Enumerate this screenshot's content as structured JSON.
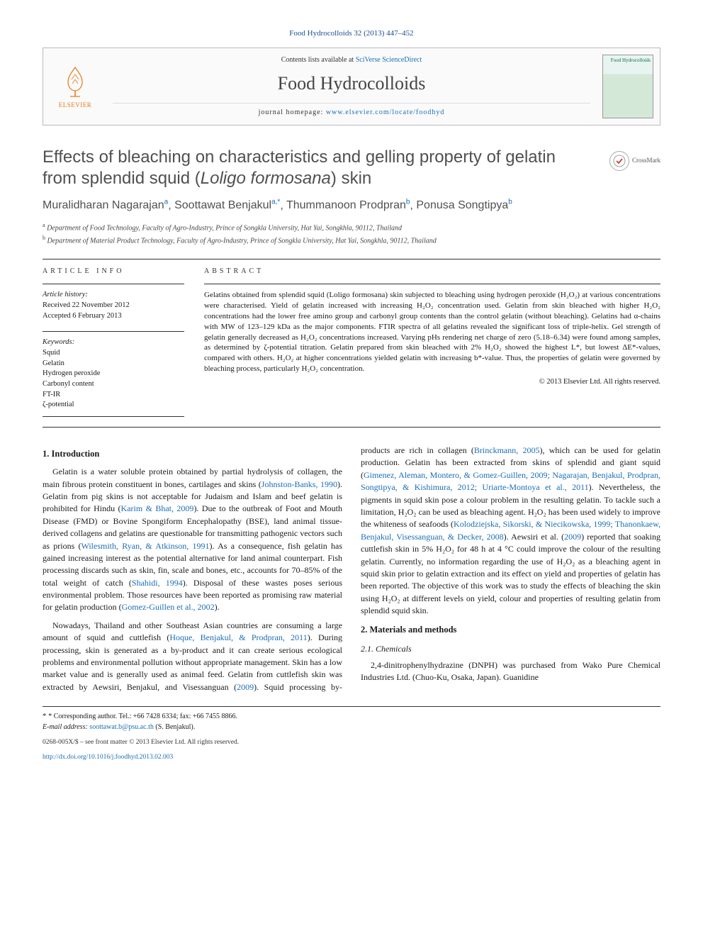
{
  "citation": "Food Hydrocolloids 32 (2013) 447–452",
  "masthead": {
    "contents_prefix": "Contents lists available at ",
    "contents_link": "SciVerse ScienceDirect",
    "journal": "Food Hydrocolloids",
    "homepage_prefix": "journal homepage: ",
    "homepage_url": "www.elsevier.com/locate/foodhyd",
    "publisher": "ELSEVIER",
    "cover_label": "Food Hydrocolloids"
  },
  "crossmark": "CrossMark",
  "title_a": "Effects of bleaching on characteristics and gelling property of gelatin from splendid squid (",
  "title_species": "Loligo formosana",
  "title_b": ") skin",
  "authors_html": "Muralidharan Nagarajan|a|, Soottawat Benjakul|a,*|, Thummanoon Prodpran|b|, Ponusa Songtipya|b|",
  "authors": [
    {
      "name": "Muralidharan Nagarajan",
      "sup": "a"
    },
    {
      "name": "Soottawat Benjakul",
      "sup": "a,*"
    },
    {
      "name": "Thummanoon Prodpran",
      "sup": "b"
    },
    {
      "name": "Ponusa Songtipya",
      "sup": "b"
    }
  ],
  "affiliations": [
    {
      "sup": "a",
      "text": "Department of Food Technology, Faculty of Agro-Industry, Prince of Songkla University, Hat Yai, Songkhla, 90112, Thailand"
    },
    {
      "sup": "b",
      "text": "Department of Material Product Technology, Faculty of Agro-Industry, Prince of Songkla University, Hat Yai, Songkhla, 90112, Thailand"
    }
  ],
  "info_heading": "ARTICLE INFO",
  "abstract_heading": "ABSTRACT",
  "history": {
    "label": "Article history:",
    "received": "Received 22 November 2012",
    "accepted": "Accepted 6 February 2013"
  },
  "keywords_label": "Keywords:",
  "keywords": [
    "Squid",
    "Gelatin",
    "Hydrogen peroxide",
    "Carbonyl content",
    "FT-IR",
    "ζ-potential"
  ],
  "abstract": "Gelatins obtained from splendid squid (Loligo formosana) skin subjected to bleaching using hydrogen peroxide (H₂O₂) at various concentrations were characterised. Yield of gelatin increased with increasing H₂O₂ concentration used. Gelatin from skin bleached with higher H₂O₂ concentrations had the lower free amino group and carbonyl group contents than the control gelatin (without bleaching). Gelatins had α-chains with MW of 123–129 kDa as the major components. FTIR spectra of all gelatins revealed the significant loss of triple-helix. Gel strength of gelatin generally decreased as H₂O₂ concentrations increased. Varying pHs rendering net charge of zero (5.18–6.34) were found among samples, as determined by ζ-potential titration. Gelatin prepared from skin bleached with 2% H₂O₂ showed the highest L*, but lowest ΔE*-values, compared with others. H₂O₂ at higher concentrations yielded gelatin with increasing b*-value. Thus, the properties of gelatin were governed by bleaching process, particularly H₂O₂ concentration.",
  "copyright": "© 2013 Elsevier Ltd. All rights reserved.",
  "sections": {
    "intro_h": "1.  Introduction",
    "intro_p1": "Gelatin is a water soluble protein obtained by partial hydrolysis of collagen, the main fibrous protein constituent in bones, cartilages and skins (Johnston-Banks, 1990). Gelatin from pig skins is not acceptable for Judaism and Islam and beef gelatin is prohibited for Hindu (Karim & Bhat, 2009). Due to the outbreak of Foot and Mouth Disease (FMD) or Bovine Spongiform Encephalopathy (BSE), land animal tissue-derived collagens and gelatins are questionable for transmitting pathogenic vectors such as prions (Wilesmith, Ryan, & Atkinson, 1991). As a consequence, fish gelatin has gained increasing interest as the potential alternative for land animal counterpart. Fish processing discards such as skin, fin, scale and bones, etc., accounts for 70–85% of the total weight of catch (Shahidi, 1994). Disposal of these wastes poses serious environmental problem. Those resources have been reported as promising raw material for gelatin production (Gomez-Guillen et al., 2002).",
    "intro_p2": "Nowadays, Thailand and other Southeast Asian countries are consuming a large amount of squid and cuttlefish (Hoque, Benjakul, & Prodpran, 2011). During processing, skin is generated as a by-product and it can create serious ecological problems and environmental pollution without appropriate management. Skin has a low market value and is generally used as animal feed. Gelatin from cuttlefish skin was extracted by Aewsiri, Benjakul, and Visessanguan (2009). Squid processing by-products are rich in collagen (Brinckmann, 2005), which can be used for gelatin production. Gelatin has been extracted from skins of splendid and giant squid (Gimenez, Aleman, Montero, & Gomez-Guillen, 2009; Nagarajan, Benjakul, Prodpran, Songtipya, & Kishimura, 2012; Uriarte-Montoya et al., 2011). Nevertheless, the pigments in squid skin pose a colour problem in the resulting gelatin. To tackle such a limitation, H₂O₂ can be used as bleaching agent. H₂O₂ has been used widely to improve the whiteness of seafoods (Kolodziejska, Sikorski, & Niecikowska, 1999; Thanonkaew, Benjakul, Visessanguan, & Decker, 2008). Aewsiri et al. (2009) reported that soaking cuttlefish skin in 5% H₂O₂ for 48 h at 4 °C could improve the colour of the resulting gelatin. Currently, no information regarding the use of H₂O₂ as a bleaching agent in squid skin prior to gelatin extraction and its effect on yield and properties of gelatin has been reported. The objective of this work was to study the effects of bleaching the skin using H₂O₂ at different levels on yield, colour and properties of resulting gelatin from splendid squid skin.",
    "mm_h": "2.  Materials and methods",
    "mm_s1_h": "2.1.  Chemicals",
    "mm_s1_p": "2,4-dinitrophenylhydrazine (DNPH) was purchased from Wako Pure Chemical Industries Ltd. (Chuo-Ku, Osaka, Japan). Guanidine"
  },
  "footer": {
    "corr_label": "* Corresponding author. Tel.: ",
    "tel": "+66 7428 6334",
    "fax_label": "; fax: ",
    "fax": "+66 7455 8866",
    "email_label": "E-mail address: ",
    "email": "soottawat.b@psu.ac.th",
    "email_suffix": " (S. Benjakul).",
    "issn_line": "0268-005X/$ – see front matter © 2013 Elsevier Ltd. All rights reserved.",
    "doi_label": "",
    "doi": "http://dx.doi.org/10.1016/j.foodhyd.2013.02.003"
  },
  "colors": {
    "link": "#1a6db5",
    "heading": "#505050",
    "elsevier": "#e67817"
  }
}
